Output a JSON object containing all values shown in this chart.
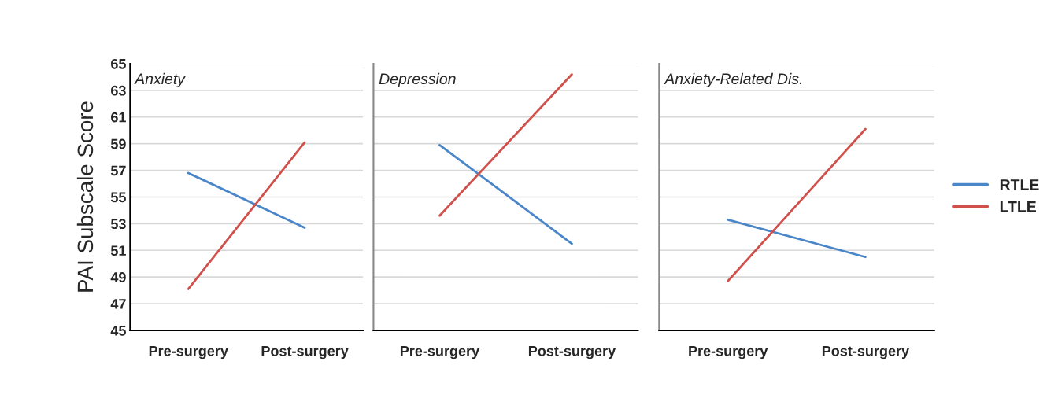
{
  "chart_data": [
    {
      "type": "line",
      "title": "Anxiety",
      "ylabel": "PAI Subscale Score",
      "categories": [
        "Pre-surgery",
        "Post-surgery"
      ],
      "ylim": [
        45,
        65
      ],
      "yticks": [
        45,
        47,
        49,
        51,
        53,
        55,
        57,
        59,
        61,
        63,
        65
      ],
      "grid": "y",
      "legend": false,
      "series": [
        {
          "color": "#4a86c8",
          "values": [
            56.8,
            52.7
          ]
        },
        {
          "color": "#d0504c",
          "values": [
            48.1,
            59.1
          ]
        }
      ]
    },
    {
      "type": "line",
      "title": "Depression",
      "categories": [
        "Pre-surgery",
        "Post-surgery"
      ],
      "ylim": [
        45,
        65
      ],
      "yticks": [
        45,
        47,
        49,
        51,
        53,
        55,
        57,
        59,
        61,
        63,
        65
      ],
      "grid": "y",
      "legend": false,
      "tick_labels": "x",
      "series": [
        {
          "color": "#4a86c8",
          "values": [
            58.9,
            51.5
          ]
        },
        {
          "color": "#d0504c",
          "values": [
            53.6,
            64.2
          ]
        }
      ]
    },
    {
      "type": "line",
      "title": "Anxiety-Related Dis.",
      "categories": [
        "Pre-surgery",
        "Post-surgery"
      ],
      "ylim": [
        45,
        65
      ],
      "yticks": [
        45,
        47,
        49,
        51,
        53,
        55,
        57,
        59,
        61,
        63,
        65
      ],
      "grid": "y",
      "legend": "right",
      "tick_labels": "x",
      "series": [
        {
          "name": "RTLE",
          "color": "#4a86c8",
          "values": [
            53.3,
            50.5
          ]
        },
        {
          "name": "LTLE",
          "color": "#d0504c",
          "values": [
            48.7,
            60.1
          ]
        }
      ]
    }
  ]
}
